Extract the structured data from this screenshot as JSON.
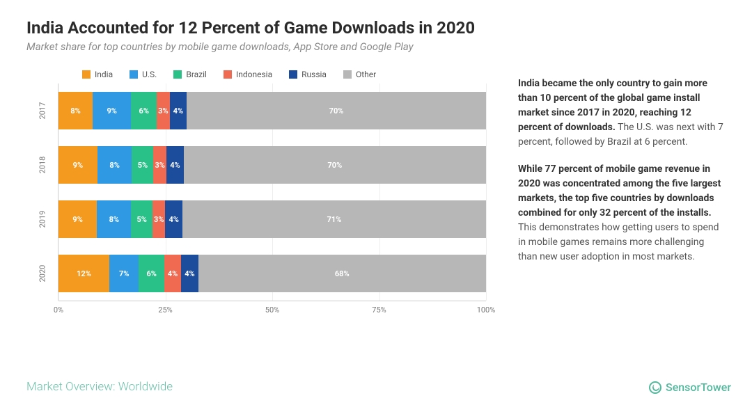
{
  "header": {
    "title": "India Accounted for 12 Percent of Game Downloads in 2020",
    "subtitle": "Market share for top countries by mobile game downloads, App Store and Google Play"
  },
  "chart": {
    "type": "stacked-bar-horizontal",
    "background_color": "#ffffff",
    "grid_color": "#eeeeee",
    "axis_color": "#cccccc",
    "label_fontsize": 11,
    "segment_label_color": "#ffffff",
    "xlim": [
      0,
      100
    ],
    "xtick_step": 25,
    "x_ticks": [
      "0%",
      "25%",
      "50%",
      "75%",
      "100%"
    ],
    "series": [
      {
        "name": "India",
        "color": "#f39a1f"
      },
      {
        "name": "U.S.",
        "color": "#2f99e3"
      },
      {
        "name": "Brazil",
        "color": "#2ac189"
      },
      {
        "name": "Indonesia",
        "color": "#ef6a51"
      },
      {
        "name": "Russia",
        "color": "#1c4d9c"
      },
      {
        "name": "Other",
        "color": "#b7b7b7"
      }
    ],
    "rows": [
      {
        "label": "2017",
        "values": [
          8,
          9,
          6,
          3,
          4,
          70
        ]
      },
      {
        "label": "2018",
        "values": [
          9,
          8,
          5,
          3,
          4,
          70
        ]
      },
      {
        "label": "2019",
        "values": [
          9,
          8,
          5,
          3,
          4,
          71
        ]
      },
      {
        "label": "2020",
        "values": [
          12,
          7,
          6,
          4,
          4,
          68
        ]
      }
    ]
  },
  "commentary": {
    "p1_bold": "India became the only country to gain more than 10 percent of the global game install market since 2017 in 2020, reaching 12 percent of downloads.",
    "p1_rest": " The U.S. was next with 7 percent, followed by Brazil at 6 percent.",
    "p2_bold": "While 77 percent of mobile game revenue in 2020 was concentrated among the five largest markets, the top five countries by downloads combined for only 32 percent of the installs.",
    "p2_rest": " This demonstrates how getting users to spend in mobile games remains more challenging than new user adoption in most markets."
  },
  "footer": {
    "section_label": "Market Overview: Worldwide",
    "brand": "SensorTower"
  }
}
